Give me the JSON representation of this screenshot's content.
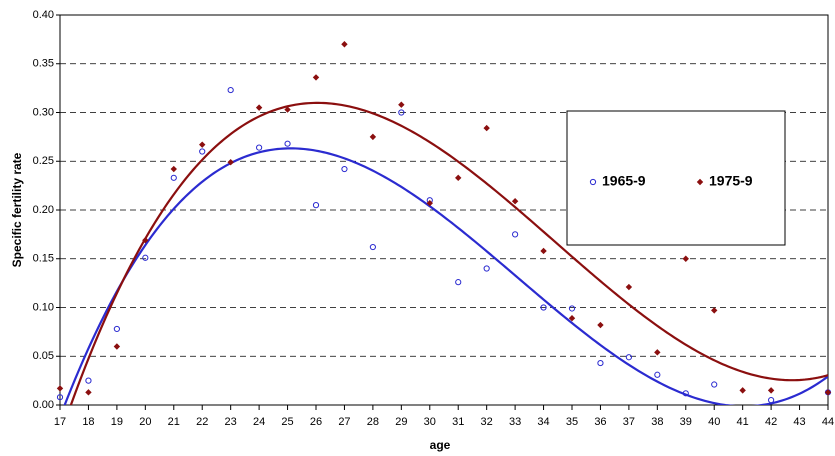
{
  "chart_data": {
    "type": "scatter",
    "x_label": "age",
    "y_label": "Specific fertility rate",
    "x": [
      17,
      18,
      19,
      20,
      21,
      22,
      23,
      24,
      25,
      26,
      27,
      28,
      29,
      30,
      31,
      32,
      33,
      34,
      35,
      36,
      37,
      38,
      39,
      40,
      41,
      42,
      43,
      44
    ],
    "xlim": [
      17,
      44
    ],
    "xticks": [
      17,
      18,
      19,
      20,
      21,
      22,
      23,
      24,
      25,
      26,
      27,
      28,
      29,
      30,
      31,
      32,
      33,
      34,
      35,
      36,
      37,
      38,
      39,
      40,
      41,
      42,
      43,
      44
    ],
    "ylim": [
      0,
      0.4
    ],
    "yticks": [
      {
        "value": 0,
        "label": "0.00"
      },
      {
        "value": 0.05,
        "label": "0.05"
      },
      {
        "value": 0.1,
        "label": "0.10"
      },
      {
        "value": 0.15,
        "label": "0.15"
      },
      {
        "value": 0.2,
        "label": "0.20"
      },
      {
        "value": 0.25,
        "label": "0.25"
      },
      {
        "value": 0.3,
        "label": "0.30"
      },
      {
        "value": 0.35,
        "label": "0.35"
      },
      {
        "value": 0.4,
        "label": "0.40"
      }
    ],
    "grid": true,
    "trendline": "polynomial",
    "legend": "right",
    "series": [
      {
        "name": "1965-9",
        "color": "#2b2bd0",
        "marker": "circle",
        "values": [
          0.008,
          0.025,
          0.078,
          0.151,
          0.233,
          0.26,
          0.323,
          0.264,
          0.268,
          0.205,
          0.242,
          0.162,
          0.3,
          0.21,
          0.126,
          0.14,
          0.175,
          0.1,
          0.099,
          0.043,
          0.049,
          0.031,
          0.012,
          0.021,
          null,
          0.005,
          null,
          0.013
        ]
      },
      {
        "name": "1975-9",
        "color": "#8b0f0f",
        "marker": "diamond",
        "values": [
          0.017,
          0.013,
          0.06,
          0.169,
          0.242,
          0.267,
          0.249,
          0.305,
          0.303,
          0.336,
          0.37,
          0.275,
          0.308,
          0.207,
          0.233,
          0.284,
          0.209,
          0.158,
          0.089,
          0.082,
          0.121,
          0.054,
          0.15,
          0.097,
          0.015,
          0.015,
          null,
          0.013
        ]
      }
    ]
  }
}
